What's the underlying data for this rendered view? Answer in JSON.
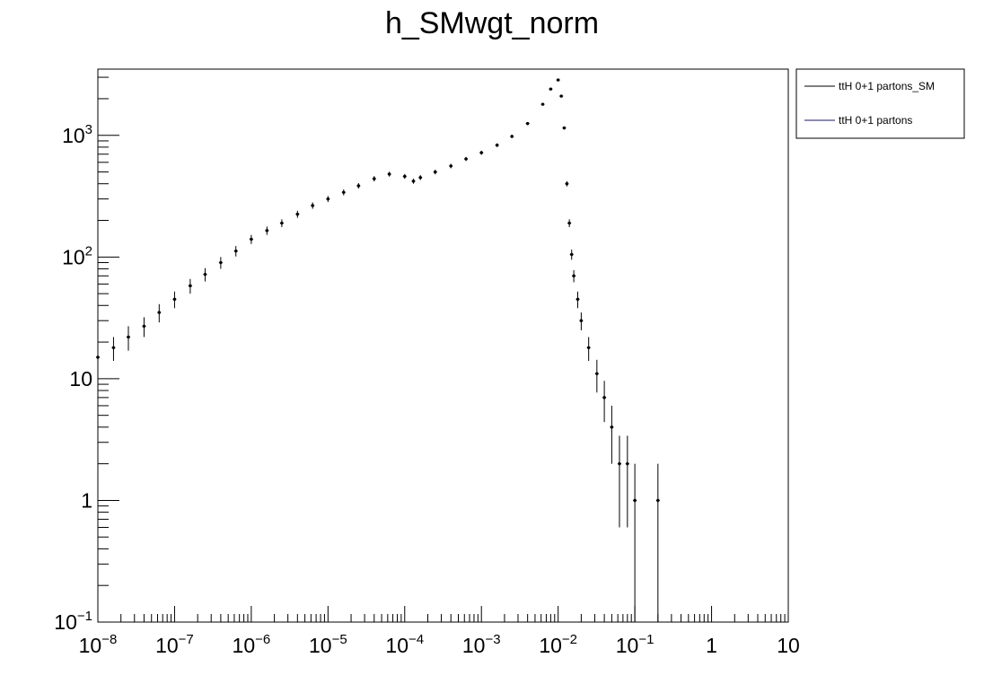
{
  "chart_data": {
    "type": "scatter",
    "title": "h_SMwgt_norm",
    "xlabel": "",
    "ylabel": "",
    "xscale": "log",
    "yscale": "log",
    "xlim": [
      1e-08,
      10
    ],
    "ylim": [
      0.1,
      3500
    ],
    "grid": false,
    "legend_position": "top-right, outside plot",
    "x_tick_labels": [
      {
        "base": "10",
        "exp": "−8"
      },
      {
        "base": "10",
        "exp": "−7"
      },
      {
        "base": "10",
        "exp": "−6"
      },
      {
        "base": "10",
        "exp": "−5"
      },
      {
        "base": "10",
        "exp": "−4"
      },
      {
        "base": "10",
        "exp": "−3"
      },
      {
        "base": "10",
        "exp": "−2"
      },
      {
        "base": "10",
        "exp": "−1"
      },
      {
        "base": "1",
        "exp": ""
      },
      {
        "base": "10",
        "exp": ""
      }
    ],
    "y_tick_labels": [
      {
        "base": "10",
        "exp": "−1"
      },
      {
        "base": "1",
        "exp": ""
      },
      {
        "base": "10",
        "exp": ""
      },
      {
        "base": "10",
        "exp": "2"
      },
      {
        "base": "10",
        "exp": "3"
      }
    ],
    "series": [
      {
        "name": "ttH 0+1 partons_SM",
        "color": "#000000",
        "marker": "dot with error bars",
        "x": [
          1e-08,
          1.6e-08,
          2.5e-08,
          4e-08,
          6.3e-08,
          1e-07,
          1.6e-07,
          2.5e-07,
          4e-07,
          6.3e-07,
          1e-06,
          1.6e-06,
          2.5e-06,
          4e-06,
          6.3e-06,
          1e-05,
          1.6e-05,
          2.5e-05,
          4e-05,
          6.3e-05,
          0.0001,
          0.00013,
          0.00016,
          0.00025,
          0.0004,
          0.00063,
          0.001,
          0.0016,
          0.0025,
          0.004,
          0.0063,
          0.008,
          0.01,
          0.011,
          0.012,
          0.013,
          0.014,
          0.015,
          0.016,
          0.018,
          0.02,
          0.025,
          0.032,
          0.04,
          0.05,
          0.063,
          0.08,
          0.1,
          0.2
        ],
        "y": [
          15,
          18,
          22,
          27,
          35,
          45,
          58,
          72,
          90,
          112,
          140,
          165,
          190,
          225,
          265,
          300,
          340,
          385,
          440,
          480,
          460,
          420,
          450,
          500,
          560,
          640,
          720,
          830,
          980,
          1250,
          1800,
          2400,
          2850,
          2100,
          1150,
          400,
          190,
          105,
          70,
          45,
          30,
          18,
          11,
          7,
          4,
          2,
          2,
          1,
          1
        ],
        "yerr": [
          4,
          4,
          5,
          5,
          6,
          7,
          8,
          9,
          10,
          11,
          12,
          13,
          14,
          15,
          16,
          17,
          19,
          20,
          22,
          22,
          21,
          20,
          21,
          22,
          24,
          25,
          27,
          29,
          31,
          35,
          42,
          49,
          53,
          46,
          34,
          20,
          14,
          10,
          8,
          7,
          5,
          4,
          3.3,
          2.6,
          2,
          1.4,
          1.4,
          1,
          1
        ]
      },
      {
        "name": "ttH 0+1 partons",
        "color": "#1a1a66",
        "marker": "dot",
        "x": [],
        "y": []
      }
    ]
  }
}
